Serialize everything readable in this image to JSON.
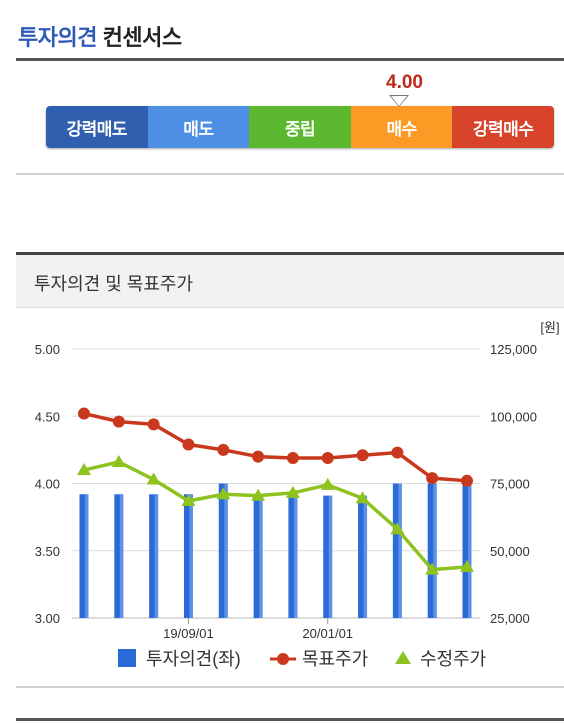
{
  "header": {
    "title_blue": "투자의견",
    "title_dark": "컨센서스"
  },
  "consensus": {
    "value": "4.00",
    "value_numeric": 4.0,
    "levels": [
      {
        "label": "강력매도",
        "color": "#2f5fae"
      },
      {
        "label": "매도",
        "color": "#4d8fe3"
      },
      {
        "label": "중립",
        "color": "#5cb82e"
      },
      {
        "label": "매수",
        "color": "#fb9a25"
      },
      {
        "label": "강력매수",
        "color": "#d8432c"
      }
    ]
  },
  "section": {
    "title": "투자의견 및 목표주가"
  },
  "chart_data": {
    "type": "bar+line",
    "right_unit": "[원]",
    "left_axis": {
      "ticks": [
        "5.00",
        "4.50",
        "4.00",
        "3.50",
        "3.00"
      ],
      "range": [
        3.0,
        5.0
      ]
    },
    "right_axis": {
      "ticks": [
        "125,000",
        "100,000",
        "75,000",
        "50,000",
        "25,000"
      ],
      "range": [
        25000,
        125000
      ]
    },
    "x_ticks": [
      {
        "label": "19/09/01",
        "index": 3
      },
      {
        "label": "20/01/01",
        "index": 7
      }
    ],
    "grid": true,
    "legend_position": "bottom",
    "series": [
      {
        "name": "투자의견(좌)",
        "type": "bar",
        "axis": "left",
        "color": "#2a6bd8",
        "values": [
          3.92,
          3.92,
          3.92,
          3.92,
          4.0,
          3.92,
          3.92,
          3.91,
          3.91,
          4.0,
          4.0,
          4.0
        ]
      },
      {
        "name": "목표주가",
        "type": "line",
        "axis": "right",
        "color": "#c9381c",
        "marker": "circle",
        "values": [
          101000,
          98000,
          97000,
          89500,
          87500,
          85000,
          84500,
          84500,
          85500,
          86500,
          77000,
          76000
        ]
      },
      {
        "name": "수정주가",
        "type": "line",
        "axis": "right",
        "color": "#8ec21e",
        "marker": "triangle",
        "values": [
          80000,
          83000,
          76500,
          68500,
          71000,
          70500,
          71500,
          74500,
          69500,
          58000,
          43000,
          44000
        ]
      }
    ]
  }
}
